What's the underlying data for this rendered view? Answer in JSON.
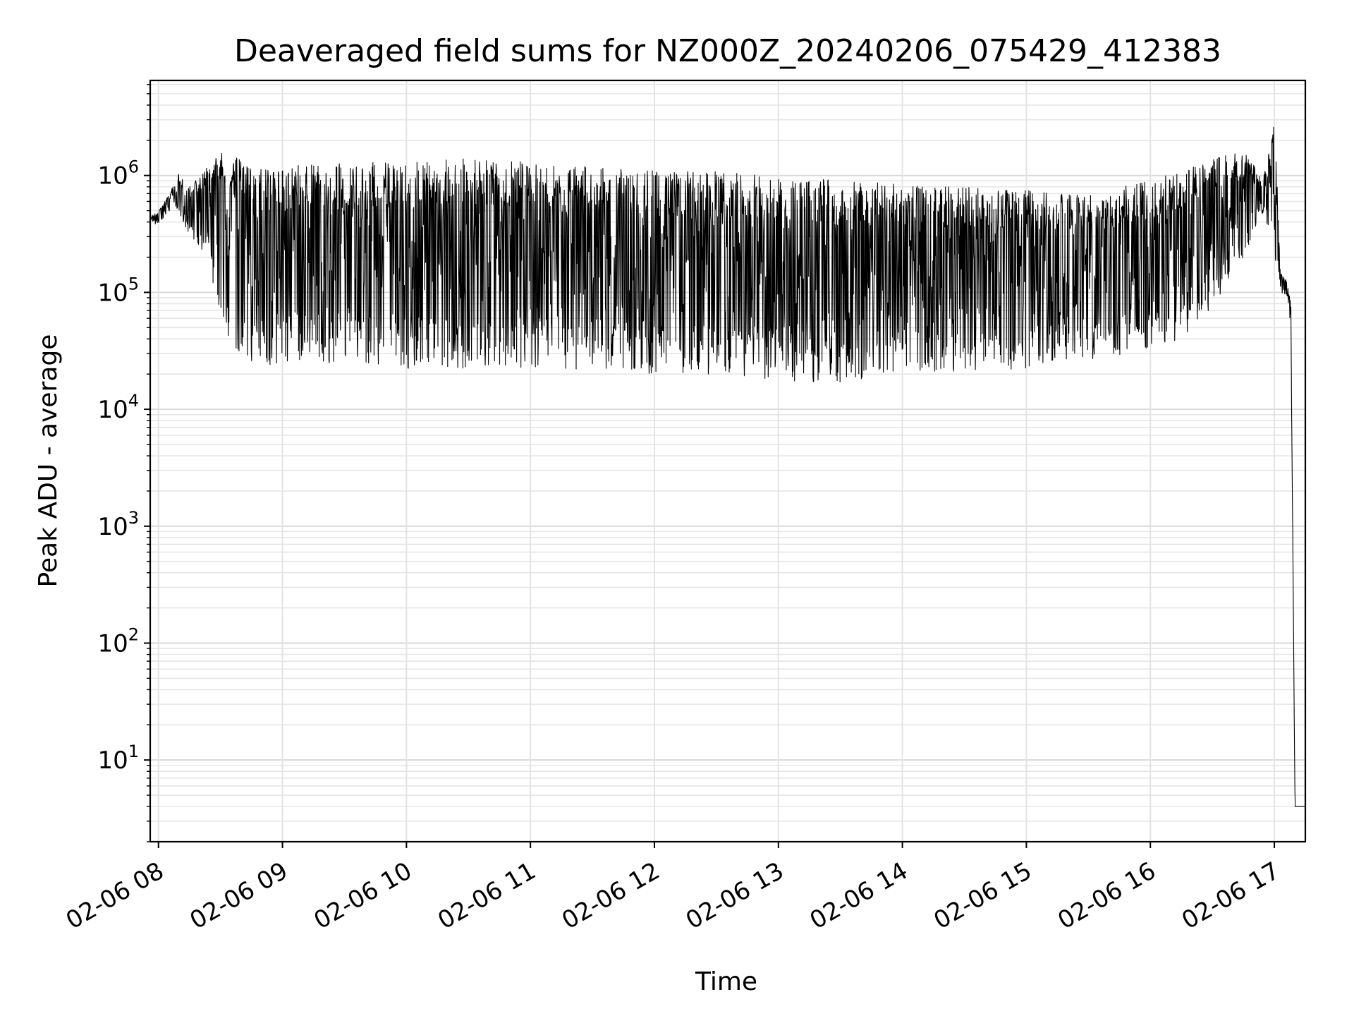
{
  "chart_data": {
    "type": "line",
    "title": "Deaveraged field sums for NZ000Z_20240206_075429_412383",
    "xlabel": "Time",
    "ylabel": "Peak ADU - average",
    "yscale": "log",
    "ylim": [
      2,
      6500000
    ],
    "xlim": [
      "02-06 07:56",
      "02-06 17:15"
    ],
    "grid": true,
    "xtick_labels": [
      "02-06 08",
      "02-06 09",
      "02-06 10",
      "02-06 11",
      "02-06 12",
      "02-06 13",
      "02-06 14",
      "02-06 15",
      "02-06 16",
      "02-06 17"
    ],
    "ytick_labels": [
      {
        "base": "10",
        "exp": "1"
      },
      {
        "base": "10",
        "exp": "2"
      },
      {
        "base": "10",
        "exp": "3"
      },
      {
        "base": "10",
        "exp": "4"
      },
      {
        "base": "10",
        "exp": "5"
      },
      {
        "base": "10",
        "exp": "6"
      }
    ],
    "series": [
      {
        "color": "#000000",
        "x": [
          "02-06 07:56",
          "02-06 08:00",
          "02-06 08:05",
          "02-06 08:10",
          "02-06 08:15",
          "02-06 08:20",
          "02-06 08:25",
          "02-06 08:30",
          "02-06 08:35",
          "02-06 08:40",
          "02-06 08:45",
          "02-06 08:50",
          "02-06 09:00",
          "02-06 09:30",
          "02-06 10:00",
          "02-06 10:30",
          "02-06 11:00",
          "02-06 11:30",
          "02-06 12:00",
          "02-06 12:30",
          "02-06 13:00",
          "02-06 13:30",
          "02-06 14:00",
          "02-06 14:30",
          "02-06 15:00",
          "02-06 15:30",
          "02-06 16:00",
          "02-06 16:15",
          "02-06 16:30",
          "02-06 16:45",
          "02-06 16:55",
          "02-06 17:00",
          "02-06 17:03",
          "02-06 17:06",
          "02-06 17:08",
          "02-06 17:10",
          "02-06 17:15"
        ],
        "y_upper": [
          450000,
          500000,
          700000,
          1050000,
          800000,
          1000000,
          1500000,
          1600000,
          1500000,
          1400000,
          1200000,
          1200000,
          1200000,
          1300000,
          1300000,
          1400000,
          1300000,
          1200000,
          1100000,
          1100000,
          1000000,
          900000,
          850000,
          800000,
          750000,
          700000,
          900000,
          1100000,
          1400000,
          1600000,
          1000000,
          3300000,
          150000,
          130000,
          80000,
          4,
          4
        ],
        "y_lower": [
          380000,
          380000,
          500000,
          450000,
          300000,
          250000,
          150000,
          60000,
          35000,
          25000,
          22000,
          22000,
          25000,
          25000,
          22000,
          22000,
          22000,
          22000,
          20000,
          19000,
          18000,
          16000,
          20000,
          20000,
          22000,
          25000,
          30000,
          40000,
          70000,
          200000,
          500000,
          200000,
          100000,
          90000,
          50000,
          4,
          4
        ]
      }
    ]
  }
}
